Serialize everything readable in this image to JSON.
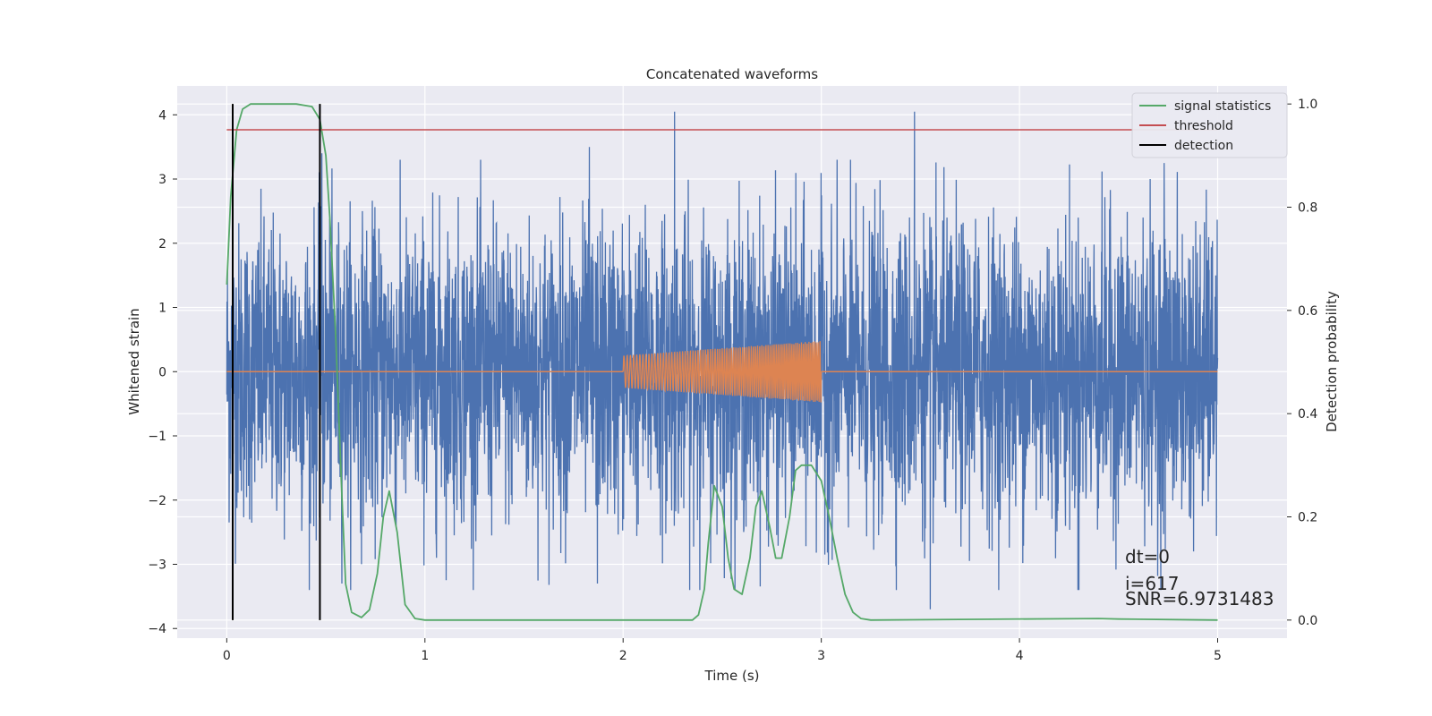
{
  "chart_data": {
    "type": "line",
    "title": "Concatenated waveforms",
    "xlabel": "Time (s)",
    "ylabel": "Whitened strain",
    "ylabel_right": "Detection probability",
    "xlim": [
      -0.25,
      5.35
    ],
    "ylim": [
      -4.15,
      4.45
    ],
    "ylim_right": [
      -0.035,
      1.035
    ],
    "xticks": [
      0,
      1,
      2,
      3,
      4,
      5
    ],
    "yticks": [
      -4,
      -3,
      -2,
      -1,
      0,
      1,
      2,
      3,
      4
    ],
    "yticks_right": [
      0.0,
      0.2,
      0.4,
      0.6,
      0.8,
      1.0
    ],
    "grid": true,
    "legend_position": "top-right",
    "colors": {
      "noise": "#4c72b0",
      "injected": "#dd8452",
      "signal": "#55a868",
      "threshold": "#c44e52",
      "detection": "#000000",
      "background": "#eaeaf2",
      "grid": "#ffffff"
    },
    "series": [
      {
        "name": "whitened strain",
        "axis": "left",
        "x_range": [
          0,
          5
        ],
        "envelope": {
          "typical_amplitude": 1.2,
          "peak_max": 4.0,
          "peak_min": -3.7
        },
        "peaks": [
          {
            "x": 0.48,
            "y": 3.4
          },
          {
            "x": 1.83,
            "y": 3.5
          },
          {
            "x": 2.26,
            "y": 4.05
          },
          {
            "x": 3.47,
            "y": 4.05
          },
          {
            "x": 4.73,
            "y": 3.25
          },
          {
            "x": 3.55,
            "y": -3.7
          },
          {
            "x": 1.87,
            "y": -3.3
          },
          {
            "x": 4.3,
            "y": -3.4
          }
        ]
      },
      {
        "name": "injected waveform",
        "axis": "left",
        "x_range": [
          2.0,
          3.0
        ],
        "start_amplitude": 0.25,
        "end_amplitude": 0.48
      },
      {
        "name": "signal statistics",
        "axis": "right",
        "x": [
          0.0,
          0.02,
          0.05,
          0.08,
          0.12,
          0.2,
          0.35,
          0.43,
          0.47,
          0.5,
          0.52,
          0.55,
          0.58,
          0.6,
          0.63,
          0.68,
          0.72,
          0.76,
          0.79,
          0.82,
          0.86,
          0.9,
          0.95,
          1.0,
          2.35,
          2.38,
          2.41,
          2.43,
          2.46,
          2.5,
          2.53,
          2.56,
          2.6,
          2.64,
          2.67,
          2.7,
          2.74,
          2.77,
          2.8,
          2.84,
          2.87,
          2.9,
          2.95,
          3.0,
          3.04,
          3.08,
          3.12,
          3.16,
          3.2,
          3.25,
          4.4,
          4.5,
          5.0
        ],
        "y": [
          0.65,
          0.82,
          0.95,
          0.99,
          1.0,
          1.0,
          1.0,
          0.995,
          0.97,
          0.9,
          0.78,
          0.55,
          0.25,
          0.07,
          0.015,
          0.005,
          0.02,
          0.09,
          0.2,
          0.25,
          0.17,
          0.03,
          0.003,
          0.0,
          0.0,
          0.01,
          0.06,
          0.15,
          0.26,
          0.22,
          0.12,
          0.06,
          0.05,
          0.12,
          0.22,
          0.25,
          0.18,
          0.12,
          0.12,
          0.2,
          0.29,
          0.3,
          0.3,
          0.27,
          0.2,
          0.12,
          0.05,
          0.015,
          0.003,
          0.0,
          0.003,
          0.002,
          0.0
        ]
      },
      {
        "name": "threshold",
        "axis": "right",
        "y": 0.95,
        "x_range": [
          0,
          5
        ]
      },
      {
        "name": "detection",
        "axis": "right",
        "x": [
          0.03,
          0.47
        ],
        "y_range": [
          0.0,
          1.0
        ]
      }
    ],
    "legend": [
      "signal statistics",
      "threshold",
      "detection"
    ],
    "annotations": [
      "dt=0",
      "i=617",
      "SNR=6.9731483"
    ]
  }
}
